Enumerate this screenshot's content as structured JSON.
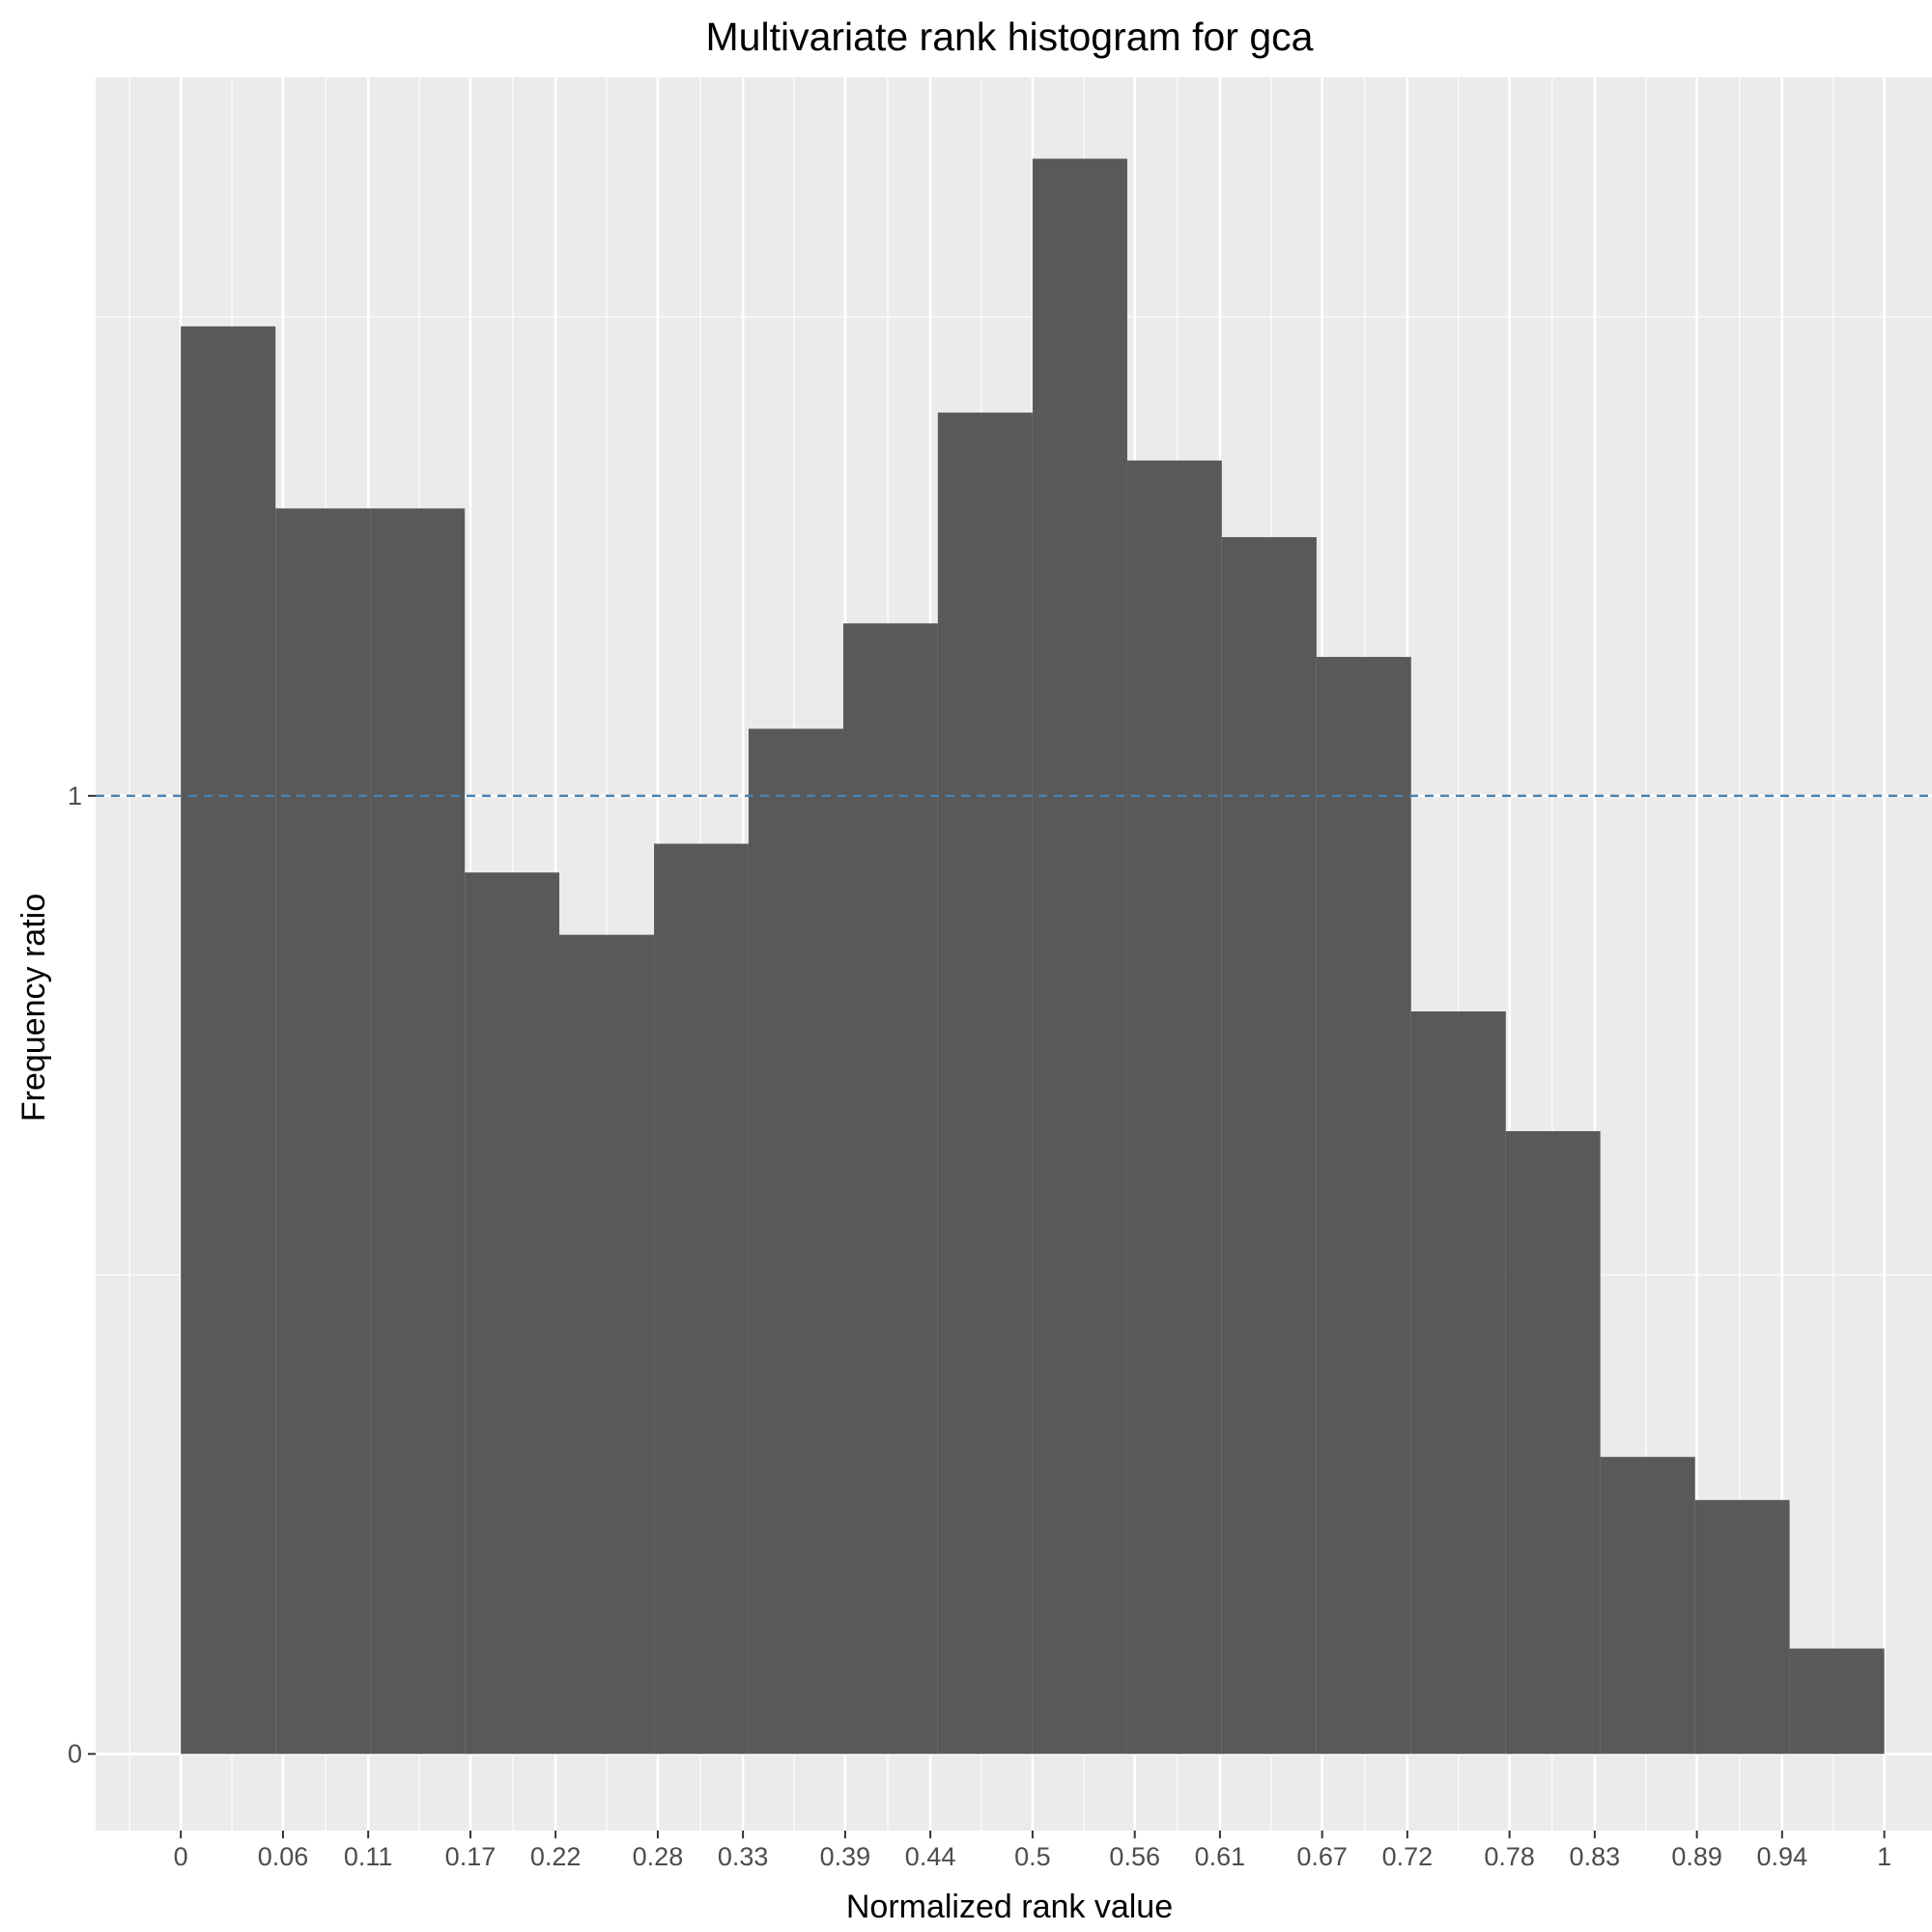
{
  "chart_data": {
    "type": "bar",
    "title": "Multivariate rank histogram for gca",
    "xlabel": "Normalized rank value",
    "ylabel": "Frequency ratio",
    "x_ticks": [
      "0",
      "0.06",
      "0.11",
      "0.17",
      "0.22",
      "0.28",
      "0.33",
      "0.39",
      "0.44",
      "0.5",
      "0.56",
      "0.61",
      "0.67",
      "0.72",
      "0.78",
      "0.83",
      "0.89",
      "0.94",
      "1"
    ],
    "y_ticks": [
      "0",
      "1"
    ],
    "bin_edges": [
      0,
      0.0556,
      0.1111,
      0.1667,
      0.2222,
      0.2778,
      0.3333,
      0.3889,
      0.4444,
      0.5,
      0.5556,
      0.6111,
      0.6667,
      0.7222,
      0.7778,
      0.8333,
      0.8889,
      0.9444,
      1
    ],
    "values": [
      1.49,
      1.3,
      1.3,
      0.92,
      0.855,
      0.95,
      1.07,
      1.18,
      1.4,
      1.665,
      1.35,
      1.27,
      1.145,
      0.775,
      0.65,
      0.31,
      0.265,
      0.11
    ],
    "reference_line": {
      "y": 1,
      "style": "dashed",
      "color": "#4682b4"
    },
    "xlim": [
      -0.05,
      1.028
    ],
    "ylim": [
      -0.08,
      1.75
    ],
    "grid": true,
    "colors": {
      "bar": "#595959",
      "panel": "#ebebeb",
      "grid": "#ffffff"
    }
  }
}
